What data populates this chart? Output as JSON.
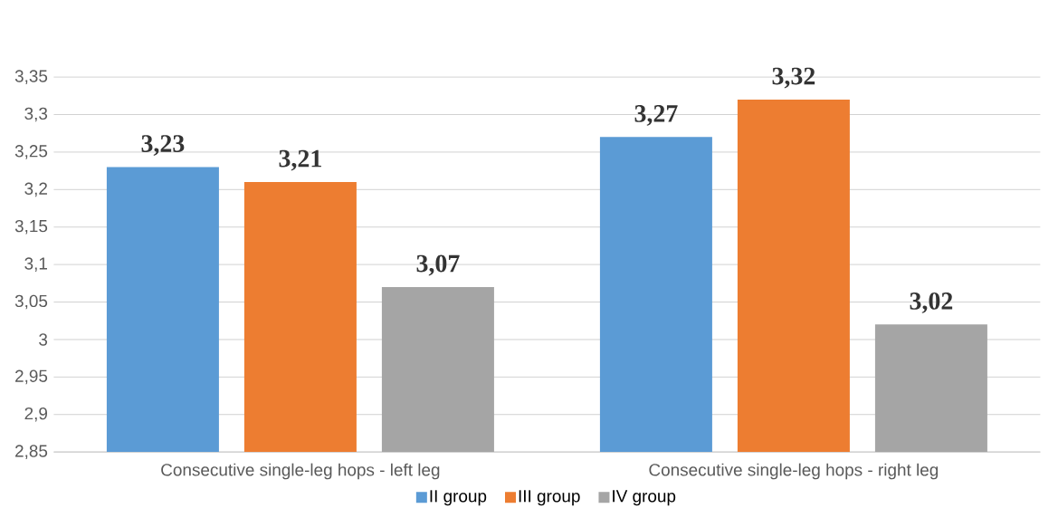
{
  "chart_data": {
    "type": "bar",
    "categories": [
      "Consecutive single-leg hops - left leg",
      "Consecutive single-leg hops - right leg"
    ],
    "series": [
      {
        "name": "II group",
        "color": "#5b9bd5",
        "values": [
          3.23,
          3.27
        ],
        "value_labels": [
          "3,23",
          "3,27"
        ]
      },
      {
        "name": "III group",
        "color": "#ed7d31",
        "values": [
          3.21,
          3.32
        ],
        "value_labels": [
          "3,21",
          "3,32"
        ]
      },
      {
        "name": "IV group",
        "color": "#a5a5a5",
        "values": [
          3.07,
          3.02
        ],
        "value_labels": [
          "3,07",
          "3,02"
        ]
      }
    ],
    "ylim": [
      2.85,
      3.35
    ],
    "yticks": [
      {
        "value": 2.85,
        "label": "2,85"
      },
      {
        "value": 2.9,
        "label": "2,9"
      },
      {
        "value": 2.95,
        "label": "2,95"
      },
      {
        "value": 3,
        "label": "3"
      },
      {
        "value": 3.05,
        "label": "3,05"
      },
      {
        "value": 3.1,
        "label": "3,1"
      },
      {
        "value": 3.15,
        "label": "3,15"
      },
      {
        "value": 3.2,
        "label": "3,2"
      },
      {
        "value": 3.25,
        "label": "3,25"
      },
      {
        "value": 3.3,
        "label": "3,3"
      },
      {
        "value": 3.35,
        "label": "3,35"
      }
    ],
    "grid": "y",
    "legend": "bottom"
  }
}
